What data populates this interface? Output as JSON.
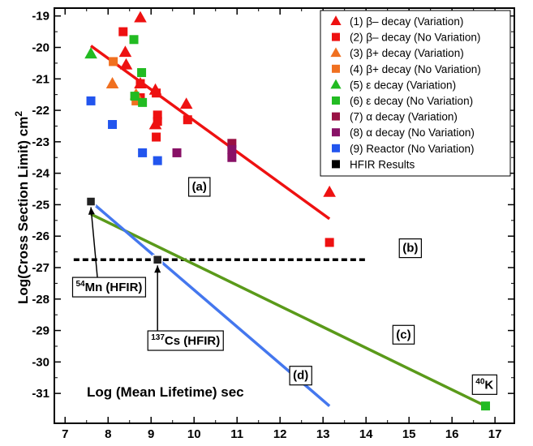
{
  "chart_data": {
    "type": "scatter",
    "xlabel": "Log (Mean Lifetime) sec",
    "ylabel": "Log(Cross Section Limit) cm",
    "ylabel_superscript": "2",
    "xlim": [
      6.75,
      17.45
    ],
    "ylim": [
      -31.95,
      -18.75
    ],
    "x_ticks": [
      7,
      8,
      9,
      10,
      11,
      12,
      13,
      14,
      15,
      16,
      17
    ],
    "y_ticks": [
      -19,
      -20,
      -21,
      -22,
      -23,
      -24,
      -25,
      -26,
      -27,
      -28,
      -29,
      -30,
      -31
    ],
    "x_ticks_text": [
      "7",
      "8",
      "9",
      "10",
      "11",
      "12",
      "13",
      "14",
      "15",
      "16",
      "17"
    ],
    "y_ticks_text": [
      "-19",
      "-20",
      "-21",
      "-22",
      "-23",
      "-24",
      "-25",
      "-26",
      "-27",
      "-28",
      "-29",
      "-30",
      "-31"
    ],
    "legend_position": "top-right",
    "series": [
      {
        "name": "(1) β– decay (Variation)",
        "marker": "triangle",
        "color": "#ee1111",
        "points": [
          [
            8.75,
            -19.05
          ],
          [
            8.4,
            -20.15
          ],
          [
            8.42,
            -20.55
          ],
          [
            8.75,
            -21.15
          ],
          [
            9.1,
            -21.35
          ],
          [
            9.1,
            -22.45
          ],
          [
            9.82,
            -21.8
          ],
          [
            13.15,
            -24.6
          ]
        ]
      },
      {
        "name": "(2) β– decay (No Variation)",
        "marker": "square",
        "color": "#ee1111",
        "points": [
          [
            8.35,
            -19.5
          ],
          [
            8.75,
            -21.15
          ],
          [
            8.75,
            -21.6
          ],
          [
            9.12,
            -21.45
          ],
          [
            9.15,
            -22.15
          ],
          [
            9.15,
            -22.35
          ],
          [
            9.12,
            -22.85
          ],
          [
            9.85,
            -22.3
          ],
          [
            13.15,
            -26.2
          ]
        ]
      },
      {
        "name": "(3) β+ decay (Variation)",
        "marker": "triangle",
        "color": "#f07020",
        "points": [
          [
            8.1,
            -21.15
          ],
          [
            8.65,
            -21.5
          ]
        ]
      },
      {
        "name": "(4) β+ decay (No Variation)",
        "marker": "square",
        "color": "#f07020",
        "points": [
          [
            8.12,
            -20.45
          ],
          [
            8.65,
            -21.7
          ]
        ]
      },
      {
        "name": "(5) ε decay (Variation)",
        "marker": "triangle",
        "color": "#22bb22",
        "points": [
          [
            7.6,
            -20.2
          ]
        ]
      },
      {
        "name": "(6) ε decay (No Variation)",
        "marker": "square",
        "color": "#22bb22",
        "points": [
          [
            8.6,
            -19.75
          ],
          [
            8.78,
            -20.8
          ],
          [
            8.62,
            -21.55
          ],
          [
            8.8,
            -21.75
          ],
          [
            16.78,
            -31.4
          ]
        ]
      },
      {
        "name": "(7) α decay (Variation)",
        "marker": "square",
        "color": "#991144",
        "points": [
          [
            10.88,
            -23.05
          ]
        ]
      },
      {
        "name": "(8) α decay (No Variation)",
        "marker": "square",
        "color": "#881166",
        "points": [
          [
            9.6,
            -23.35
          ],
          [
            10.88,
            -23.25
          ],
          [
            10.88,
            -23.5
          ]
        ]
      },
      {
        "name": "(9) Reactor (No Variation)",
        "marker": "square",
        "color": "#2255ee",
        "points": [
          [
            7.6,
            -21.7
          ],
          [
            8.1,
            -22.45
          ],
          [
            8.8,
            -23.35
          ],
          [
            9.15,
            -23.6
          ]
        ]
      },
      {
        "name": "HFIR Results",
        "marker": "square",
        "color": "#000000",
        "points": [
          [
            7.6,
            -24.9
          ],
          [
            9.15,
            -26.75
          ]
        ]
      }
    ],
    "lines": [
      {
        "id": "a",
        "color": "#ee1111",
        "from": [
          7.6,
          -19.95
        ],
        "to": [
          13.15,
          -25.45
        ]
      },
      {
        "id": "b",
        "color": "#000000",
        "dashed": true,
        "from": [
          7.2,
          -26.75
        ],
        "to": [
          14.0,
          -26.75
        ]
      },
      {
        "id": "c",
        "color": "#5a9a1a",
        "from": [
          7.6,
          -25.3
        ],
        "to": [
          16.78,
          -31.4
        ]
      },
      {
        "id": "d",
        "color": "#4477ee",
        "from": [
          7.6,
          -24.9
        ],
        "to": [
          13.15,
          -31.4
        ]
      }
    ],
    "annotations": [
      {
        "text": "(a)",
        "x": 9.95,
        "y": -24.55
      },
      {
        "text": "(b)",
        "x": 14.85,
        "y": -26.5
      },
      {
        "text": "(c)",
        "x": 14.7,
        "y": -29.25
      },
      {
        "text": "(d)",
        "x": 12.3,
        "y": -30.55
      }
    ],
    "callouts": [
      {
        "sup": "54",
        "text": "Mn (HFIR)",
        "x": 7.25,
        "y": -27.75,
        "target": [
          7.6,
          -24.9
        ]
      },
      {
        "sup": "137",
        "text": "Cs (HFIR)",
        "x": 9.0,
        "y": -29.45,
        "target": [
          9.15,
          -26.75
        ]
      }
    ],
    "point_labels": [
      {
        "sup": "40",
        "text": "K",
        "x": 16.55,
        "y": -30.85
      }
    ]
  }
}
